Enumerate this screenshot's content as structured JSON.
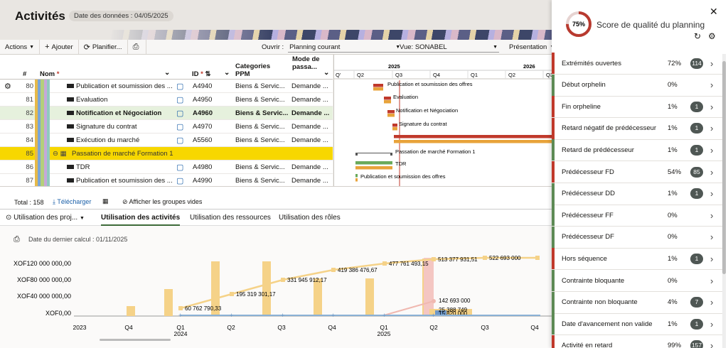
{
  "header": {
    "title": "Activités",
    "data_date": "Date des données : 04/05/2025"
  },
  "toolbar": {
    "actions": "Actions",
    "add": "Ajouter",
    "schedule": "Planifier...",
    "open_label": "Ouvrir :",
    "open_value": "Planning courant",
    "view_label": "Vue: SONABEL",
    "presentation": "Présentation"
  },
  "grid": {
    "col_hash": "#",
    "col_name": "Nom",
    "col_id": "ID",
    "col_cat": "Categories PPM",
    "col_mode": "Mode de passa...",
    "rows": [
      {
        "num": "80",
        "name": "Publication et soumission des ...",
        "id": "A4940",
        "cat": "Biens & Servic...",
        "mode": "Demande ..."
      },
      {
        "num": "81",
        "name": "Evaluation",
        "id": "A4950",
        "cat": "Biens & Servic...",
        "mode": "Demande ..."
      },
      {
        "num": "82",
        "name": "Notification et Négociation",
        "id": "A4960",
        "cat": "Biens & Servic...",
        "mode": "Demande ..."
      },
      {
        "num": "83",
        "name": "Signature du contrat",
        "id": "A4970",
        "cat": "Biens & Servic...",
        "mode": "Demande ..."
      },
      {
        "num": "84",
        "name": "Exécution du marché",
        "id": "A5560",
        "cat": "Biens & Servic...",
        "mode": "Demande ..."
      },
      {
        "num": "85",
        "name": "Passation de marché Formation 1",
        "id": "",
        "cat": "",
        "mode": ""
      },
      {
        "num": "86",
        "name": "TDR",
        "id": "A4980",
        "cat": "Biens & Servic...",
        "mode": "Demande ..."
      },
      {
        "num": "87",
        "name": "Publication et soumission des ...",
        "id": "A4990",
        "cat": "Biens & Servic...",
        "mode": "Demande ..."
      }
    ],
    "total": "Total : 158",
    "download": "Télécharger",
    "show_empty": "Afficher les groupes vides"
  },
  "gantt": {
    "years": [
      "2025",
      "2026"
    ],
    "quarters": [
      "Q'",
      "Q2",
      "Q3",
      "Q4",
      "Q1",
      "Q2",
      "Q3"
    ],
    "labels": [
      "Publication et soumission des offres",
      "Evaluation",
      "Notification et Négociation",
      "Signature du contrat",
      "Passation de marché Formation 1",
      "TDR",
      "Publication et soumission des offres"
    ]
  },
  "tabs": {
    "dropdown": "Utilisation des proj...",
    "items": [
      "Utilisation des activités",
      "Utilisation des ressources",
      "Utilisation des rôles"
    ],
    "last_calc": "Date du dernier calcul : 01/11/2025"
  },
  "chart_data": {
    "type": "bar",
    "y_ticks": [
      "XOF120 000 000,00",
      "XOF80 000 000,00",
      "XOF40 000 000,00",
      "XOF0,00"
    ],
    "x_ticks": [
      {
        "q": "2023",
        "y": ""
      },
      {
        "q": "Q4",
        "y": ""
      },
      {
        "q": "Q1",
        "y": "2024"
      },
      {
        "q": "Q2",
        "y": ""
      },
      {
        "q": "Q3",
        "y": ""
      },
      {
        "q": "Q4",
        "y": ""
      },
      {
        "q": "Q1",
        "y": "2025"
      },
      {
        "q": "Q2",
        "y": ""
      },
      {
        "q": "Q3",
        "y": ""
      },
      {
        "q": "Q4",
        "y": ""
      }
    ],
    "cumulative_labels": [
      "60 762 790,33",
      "195 319 301,17",
      "331 945 912,17",
      "419 386 476,67",
      "477 761 493,15",
      "513 377 931,51",
      "522 693 000"
    ],
    "other_labels": [
      "142 693 000",
      "25 388 749",
      "15 820 000"
    ]
  },
  "panel": {
    "score": "75%",
    "title": "Score de qualité du planning",
    "metrics": [
      {
        "name": "Extrémités ouvertes",
        "pct": "72%",
        "count": "114",
        "color": "#c0392b"
      },
      {
        "name": "Début orphelin",
        "pct": "0%",
        "count": "",
        "color": "#5d8a55"
      },
      {
        "name": "Fin orpheline",
        "pct": "1%",
        "count": "1",
        "color": "#c0392b"
      },
      {
        "name": "Retard négatif de prédécesseur",
        "pct": "1%",
        "count": "1",
        "color": "#c0392b"
      },
      {
        "name": "Retard de prédécesseur",
        "pct": "1%",
        "count": "1",
        "color": "#5d8a55"
      },
      {
        "name": "Prédécesseur FD",
        "pct": "54%",
        "count": "85",
        "color": "#c0392b"
      },
      {
        "name": "Prédécesseur DD",
        "pct": "1%",
        "count": "1",
        "color": "#5d8a55"
      },
      {
        "name": "Prédécesseur FF",
        "pct": "0%",
        "count": "",
        "color": "#5d8a55"
      },
      {
        "name": "Prédécesseur DF",
        "pct": "0%",
        "count": "",
        "color": "#5d8a55"
      },
      {
        "name": "Hors séquence",
        "pct": "1%",
        "count": "1",
        "color": "#c0392b"
      },
      {
        "name": "Contrainte bloquante",
        "pct": "0%",
        "count": "",
        "color": "#5d8a55"
      },
      {
        "name": "Contrainte non bloquante",
        "pct": "4%",
        "count": "7",
        "color": "#5d8a55"
      },
      {
        "name": "Date d'avancement non valide",
        "pct": "1%",
        "count": "1",
        "color": "#5d8a55"
      },
      {
        "name": "Activité en retard",
        "pct": "99%",
        "count": "157",
        "color": "#c0392b"
      }
    ]
  }
}
